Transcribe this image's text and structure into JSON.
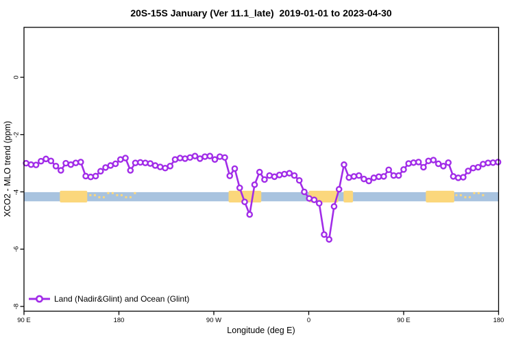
{
  "title": "20S-15S January (Ver 11.1_late)  2019-01-01 to 2023-04-30",
  "axes": {
    "x_label": "Longitude (deg E)",
    "y_label": "XCO2 - MLO trend (ppm)",
    "x_ticks": [
      {
        "label": "90 E",
        "axis_deg": 90
      },
      {
        "label": "180",
        "axis_deg": 180
      },
      {
        "label": "90 W",
        "axis_deg": 270
      },
      {
        "label": "0",
        "axis_deg": 360
      },
      {
        "label": "90 E",
        "axis_deg": 450
      },
      {
        "label": "180",
        "axis_deg": 540
      }
    ],
    "y_ticks": [
      0,
      -2,
      -4,
      -6,
      -8
    ],
    "x_axis_deg_range": [
      90,
      540
    ],
    "y_range_ppm": [
      1.7,
      -8.2
    ]
  },
  "legend": {
    "label": "Land (Nadir&Glint) and Ocean (Glint)",
    "position": "bottom-left-inside"
  },
  "colors": {
    "series": "#A12CE8",
    "ocean_band": "#A8C3DF",
    "land_band": "#FBD77C",
    "axis": "#000000",
    "background": "#ffffff"
  },
  "chart_data": {
    "type": "line",
    "title": "20S-15S January (Ver 11.1_late)  2019-01-01 to 2023-04-30",
    "xlabel": "Longitude (deg E)",
    "ylabel": "XCO2 - MLO trend (ppm)",
    "x_note": "longitude axis runs eastward 90E -> 180 -> 90W -> 0 -> 90E -> 180 (450 deg span); axis_deg = degrees east of Greenwich measured continuously from 90",
    "x_start_axis_deg": 92,
    "x_step_deg": 4.71,
    "grid": false,
    "legend_position": "bottom-left-inside",
    "series": [
      {
        "name": "Land (Nadir&Glint) and Ocean (Glint)",
        "marker": "open-circle",
        "values_ppm": [
          -3.0,
          -3.05,
          -3.06,
          -2.93,
          -2.85,
          -2.92,
          -3.1,
          -3.25,
          -3.0,
          -3.05,
          -2.99,
          -2.96,
          -3.45,
          -3.48,
          -3.45,
          -3.28,
          -3.15,
          -3.08,
          -3.02,
          -2.87,
          -2.82,
          -3.25,
          -2.99,
          -2.97,
          -2.99,
          -3.01,
          -3.08,
          -3.13,
          -3.17,
          -3.1,
          -2.87,
          -2.82,
          -2.84,
          -2.8,
          -2.75,
          -2.84,
          -2.77,
          -2.75,
          -2.87,
          -2.77,
          -2.8,
          -3.44,
          -3.19,
          -3.86,
          -4.35,
          -4.79,
          -3.75,
          -3.31,
          -3.57,
          -3.43,
          -3.47,
          -3.41,
          -3.38,
          -3.35,
          -3.43,
          -3.6,
          -4.0,
          -4.23,
          -4.28,
          -4.4,
          -5.49,
          -5.66,
          -4.51,
          -3.91,
          -3.05,
          -3.5,
          -3.46,
          -3.43,
          -3.55,
          -3.62,
          -3.51,
          -3.47,
          -3.46,
          -3.23,
          -3.43,
          -3.43,
          -3.22,
          -3.01,
          -2.98,
          -2.96,
          -3.14,
          -2.92,
          -2.89,
          -3.02,
          -3.1,
          -2.98,
          -3.46,
          -3.51,
          -3.49,
          -3.27,
          -3.17,
          -3.14,
          -3.03,
          -2.99,
          -2.98,
          -2.96
        ]
      }
    ],
    "ocean_band": {
      "value_range_ppm": [
        -4.01,
        -4.33
      ],
      "extent_axis_deg": [
        90,
        540
      ]
    },
    "land_overlays": {
      "value_range_ppm": [
        -3.96,
        -4.37
      ],
      "segments_axis_deg": [
        [
          124,
          150
        ],
        [
          284,
          315
        ],
        [
          360,
          388
        ],
        [
          393,
          402
        ],
        [
          471,
          498
        ]
      ],
      "sparse_segments_axis_deg": [
        [
          152,
          197
        ],
        [
          499,
          528
        ]
      ]
    }
  }
}
